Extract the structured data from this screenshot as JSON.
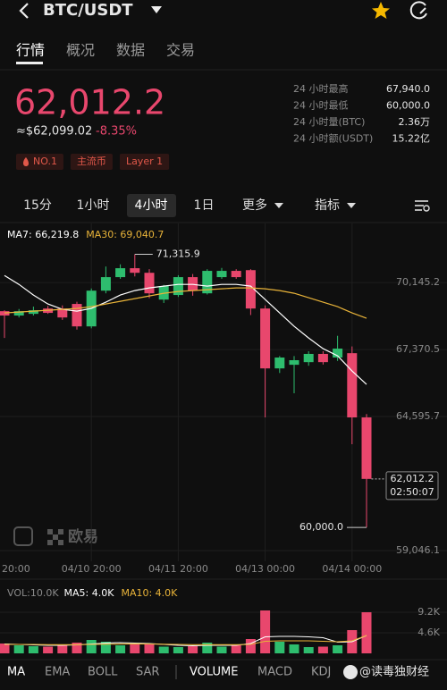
{
  "header": {
    "pair": "BTC/USDT"
  },
  "tabs": [
    "行情",
    "概况",
    "数据",
    "交易"
  ],
  "price": {
    "last": "62,012.2",
    "usd": "≈$62,099.02",
    "change": "-8.35%"
  },
  "tags": [
    "NO.1",
    "主流币",
    "Layer 1"
  ],
  "stats": [
    {
      "label": "24 小时最高",
      "value": "67,940.0"
    },
    {
      "label": "24 小时最低",
      "value": "60,000.0"
    },
    {
      "label": "24 小时量(BTC)",
      "value": "2.36万"
    },
    {
      "label": "24 小时额(USDT)",
      "value": "15.22亿"
    }
  ],
  "intervals": [
    "15分",
    "1小时",
    "4小时",
    "1日",
    "更多",
    "指标"
  ],
  "chart_data": {
    "type": "candlestick",
    "categories": [
      "20:00",
      null,
      null,
      null,
      null,
      null,
      "04/10 20:00",
      null,
      null,
      null,
      null,
      null,
      "04/11 20:00",
      null,
      null,
      null,
      null,
      null,
      "04/13 00:00",
      null,
      null,
      null,
      null,
      null,
      "04/14 00:00",
      null
    ],
    "open": [
      68960,
      68780,
      68850,
      69070,
      69070,
      69260,
      68330,
      69810,
      70370,
      70740,
      70550,
      69440,
      69630,
      70370,
      69700,
      70370,
      70630,
      70660,
      69070,
      66590,
      66740,
      66850,
      67190,
      67040,
      67220,
      64560
    ],
    "high": [
      69000,
      69050,
      69150,
      69180,
      69200,
      69350,
      69900,
      70810,
      70900,
      71315.9,
      70700,
      70050,
      70450,
      70500,
      70700,
      70750,
      70700,
      70700,
      69200,
      67100,
      67100,
      67300,
      67300,
      67940,
      67500,
      64700
    ],
    "low": [
      67850,
      68700,
      68780,
      68850,
      68600,
      68200,
      68250,
      69700,
      70300,
      70400,
      69500,
      69300,
      69550,
      69600,
      69650,
      70300,
      70300,
      68800,
      64560,
      66400,
      65560,
      66700,
      66750,
      66900,
      63450,
      60000
    ],
    "close": [
      68780,
      68960,
      69000,
      68890,
      68700,
      68330,
      69810,
      70370,
      70740,
      70550,
      69700,
      70000,
      70370,
      69810,
      70630,
      70630,
      70370,
      69070,
      66590,
      67040,
      66930,
      67190,
      66850,
      67410,
      64560,
      62012.2
    ],
    "up_color": "#2ebd6e",
    "down_color": "#e8476d",
    "series": [
      {
        "name": "MA7: 66,219.8",
        "color": "#ffffff",
        "values": [
          70441,
          70071,
          69627,
          69257,
          69035,
          68961,
          69072,
          69331,
          69627,
          69812,
          69923,
          69997,
          70071,
          70071,
          69997,
          70071,
          70071,
          69997,
          69442,
          68887,
          68332,
          67851,
          67407,
          67111,
          66482,
          65927
        ]
      },
      {
        "name": "MA30: 69,040.7",
        "color": "#e8b339",
        "values": [
          68887,
          68924,
          68961,
          68998,
          69035,
          69072,
          69146,
          69257,
          69368,
          69479,
          69590,
          69701,
          69775,
          69812,
          69849,
          69886,
          69923,
          69923,
          69886,
          69812,
          69701,
          69516,
          69331,
          69146,
          68887,
          68665
        ]
      }
    ],
    "ylim": [
      58600,
      72520
    ],
    "yticks": [
      {
        "value": 70145.2,
        "label": "70,145.2"
      },
      {
        "value": 67370.5,
        "label": "67,370.5"
      },
      {
        "value": 64595.7,
        "label": "64,595.7"
      },
      {
        "value": 59046.1,
        "label": "59,046.1"
      }
    ],
    "grid": true,
    "annotations": {
      "high": "71,315.9",
      "low": "60,000.0",
      "last": "62,012.2",
      "countdown": "02:50:07"
    },
    "volume": {
      "title": "VOL:10.0K",
      "values": [
        2200,
        1800,
        1600,
        1500,
        2000,
        2400,
        3000,
        2600,
        1800,
        2200,
        2000,
        1500,
        1400,
        1600,
        2400,
        1500,
        1800,
        3200,
        9600,
        2600,
        2000,
        1400,
        1500,
        1800,
        5200,
        9200
      ],
      "ylim": [
        0,
        15200
      ],
      "yticks": [
        {
          "value": 9200,
          "label": "9.2K"
        },
        {
          "value": 4600,
          "label": "4.6K"
        }
      ],
      "series": [
        {
          "name": "MA5: 4.0K",
          "color": "#ffffff",
          "values": [
            2100,
            2000,
            1900,
            1800,
            1800,
            1900,
            2100,
            2300,
            2400,
            2300,
            2200,
            2000,
            1800,
            1700,
            1800,
            1800,
            1800,
            2200,
            3700,
            3800,
            3800,
            3700,
            3500,
            2500,
            2600,
            4000
          ]
        },
        {
          "name": "MA10: 4.0K",
          "color": "#e8b339",
          "values": [
            2000,
            2000,
            2000,
            1950,
            1950,
            1950,
            2000,
            2050,
            2100,
            2150,
            2100,
            2050,
            2000,
            1950,
            1950,
            1950,
            1950,
            2000,
            2700,
            2800,
            2800,
            2800,
            2700,
            2600,
            2800,
            4000
          ]
        }
      ]
    }
  },
  "watermark_logo": "欧易",
  "indicator_tabs": [
    "MA",
    "EMA",
    "BOLL",
    "SAR",
    "VOLUME",
    "MACD",
    "KDJ"
  ],
  "watermark": "@读毒独财经"
}
